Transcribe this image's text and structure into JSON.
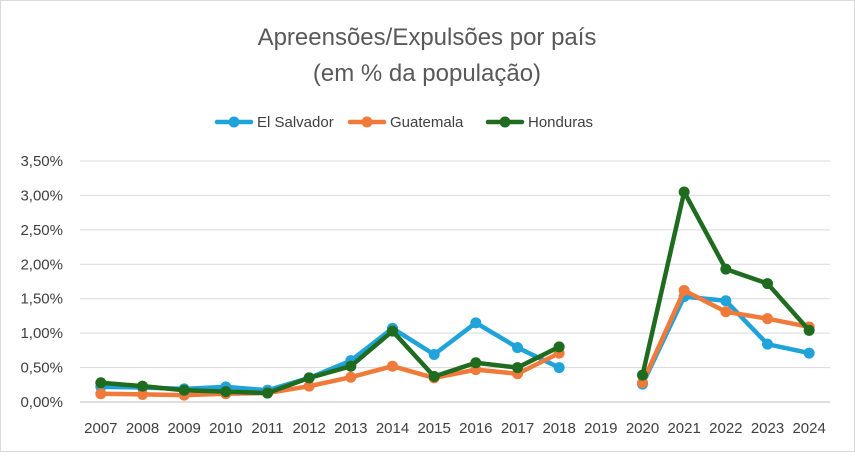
{
  "chart_data": {
    "type": "line",
    "title": "Apreensões/Expulsões por país",
    "subtitle": "(em % da população)",
    "categories": [
      "2007",
      "2008",
      "2009",
      "2010",
      "2011",
      "2012",
      "2013",
      "2014",
      "2015",
      "2016",
      "2017",
      "2018",
      "2019",
      "2020",
      "2021",
      "2022",
      "2023",
      "2024"
    ],
    "y_ticks": [
      "0,00%",
      "0,50%",
      "1,00%",
      "1,50%",
      "2,00%",
      "2,50%",
      "3,00%",
      "3,50%"
    ],
    "ylim": [
      0,
      3.5
    ],
    "y_unit": "%",
    "grid": true,
    "legend_position": "top",
    "series": [
      {
        "name": "El Salvador",
        "color": "#1fa3d9",
        "values": [
          0.22,
          0.21,
          0.19,
          0.22,
          0.17,
          0.35,
          0.6,
          1.07,
          0.69,
          1.15,
          0.79,
          0.5,
          null,
          0.26,
          1.53,
          1.47,
          0.84,
          0.71
        ]
      },
      {
        "name": "Guatemala",
        "color": "#ef7a3a",
        "values": [
          0.12,
          0.11,
          0.1,
          0.12,
          0.13,
          0.23,
          0.36,
          0.52,
          0.35,
          0.47,
          0.41,
          0.71,
          null,
          0.28,
          1.62,
          1.31,
          1.21,
          1.09
        ]
      },
      {
        "name": "Honduras",
        "color": "#1f6b1f",
        "values": [
          0.28,
          0.23,
          0.17,
          0.15,
          0.13,
          0.35,
          0.52,
          1.03,
          0.37,
          0.57,
          0.5,
          0.8,
          null,
          0.39,
          3.05,
          1.93,
          1.72,
          1.04
        ]
      }
    ]
  }
}
